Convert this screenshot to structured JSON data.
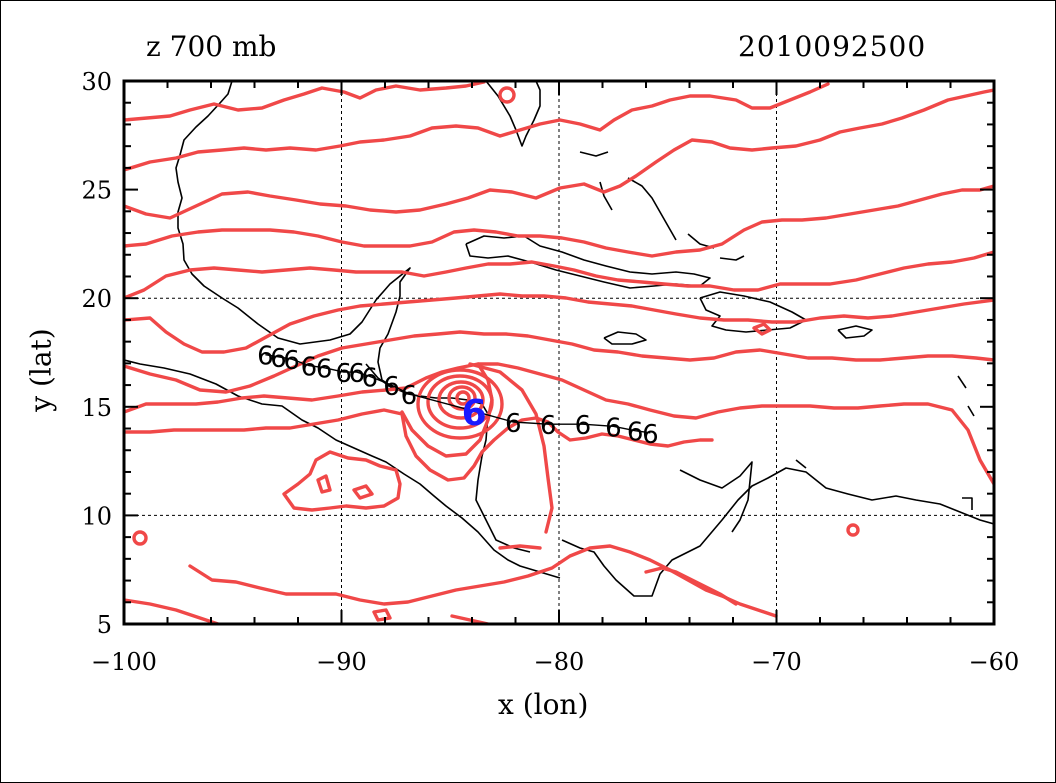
{
  "title_left": "z 700 mb",
  "title_right": "2010092500",
  "chart_data": {
    "type": "map",
    "xlabel": "x (lon)",
    "ylabel": "y (lat)",
    "xlim": [
      -100,
      -60
    ],
    "ylim": [
      5,
      30
    ],
    "xticks": [
      -100,
      -90,
      -80,
      -70,
      -60
    ],
    "xtick_labels": [
      "−100",
      "−90",
      "−80",
      "−70",
      "−60"
    ],
    "yticks": [
      5,
      10,
      15,
      20,
      25,
      30
    ],
    "ytick_labels": [
      "5",
      "10",
      "15",
      "20",
      "25",
      "30"
    ],
    "grid_lines_x": [
      -90,
      -80,
      -70
    ],
    "grid_lines_y": [
      10,
      20
    ],
    "colors": {
      "contour": "#f04848",
      "coast": "#000000",
      "storm_current": "#1a1aff",
      "track": "#000000"
    },
    "storm_symbol": "6",
    "storm_center_current": [
      -83.9,
      14.8
    ],
    "track_past": [
      [
        -93.5,
        17.4
      ],
      [
        -92.9,
        17.3
      ],
      [
        -92.3,
        17.2
      ],
      [
        -91.5,
        16.9
      ],
      [
        -90.8,
        16.8
      ],
      [
        -89.9,
        16.6
      ],
      [
        -89.3,
        16.6
      ],
      [
        -88.7,
        16.4
      ],
      [
        -87.7,
        16.0
      ],
      [
        -86.9,
        15.6
      ]
    ],
    "track_future": [
      [
        -82.1,
        14.3
      ],
      [
        -80.5,
        14.2
      ],
      [
        -78.9,
        14.2
      ],
      [
        -77.5,
        14.1
      ],
      [
        -76.5,
        13.9
      ],
      [
        -75.8,
        13.8
      ]
    ]
  }
}
